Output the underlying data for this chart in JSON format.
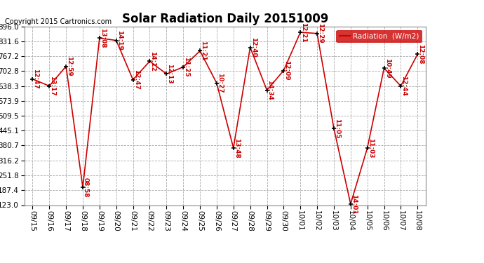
{
  "title": "Solar Radiation Daily 20151009",
  "copyright": "Copyright 2015 Cartronics.com",
  "legend_label": "Radiation  (W/m2)",
  "legend_bg": "#cc0000",
  "line_color": "#cc0000",
  "marker_color": "black",
  "bg_color": "#ffffff",
  "plot_bg": "#ffffff",
  "grid_color": "#aaaaaa",
  "ylim": [
    123.0,
    896.0
  ],
  "yticks": [
    123.0,
    187.4,
    251.8,
    316.2,
    380.7,
    445.1,
    509.5,
    573.9,
    638.3,
    702.8,
    767.2,
    831.6,
    896.0
  ],
  "dates": [
    "09/15",
    "09/16",
    "09/17",
    "09/18",
    "09/19",
    "09/20",
    "09/21",
    "09/22",
    "09/23",
    "09/24",
    "09/25",
    "09/26",
    "09/27",
    "09/28",
    "09/29",
    "09/30",
    "10/01",
    "10/02",
    "10/03",
    "10/04",
    "10/05",
    "10/06",
    "10/07",
    "10/08"
  ],
  "values": [
    668,
    638,
    723,
    200,
    845,
    835,
    665,
    745,
    690,
    720,
    790,
    650,
    370,
    805,
    620,
    705,
    870,
    865,
    455,
    128,
    370,
    715,
    638,
    775
  ],
  "time_labels": [
    "12:47",
    "13:17",
    "12:59",
    "08:58",
    "13:08",
    "14:19",
    "12:47",
    "14:12",
    "12:13",
    "11:25",
    "11:21",
    "10:27",
    "13:48",
    "12:40",
    "14:34",
    "12:09",
    "12:21",
    "12:29",
    "11:05",
    "14:01",
    "11:03",
    "10:49",
    "12:44",
    "12:08"
  ]
}
